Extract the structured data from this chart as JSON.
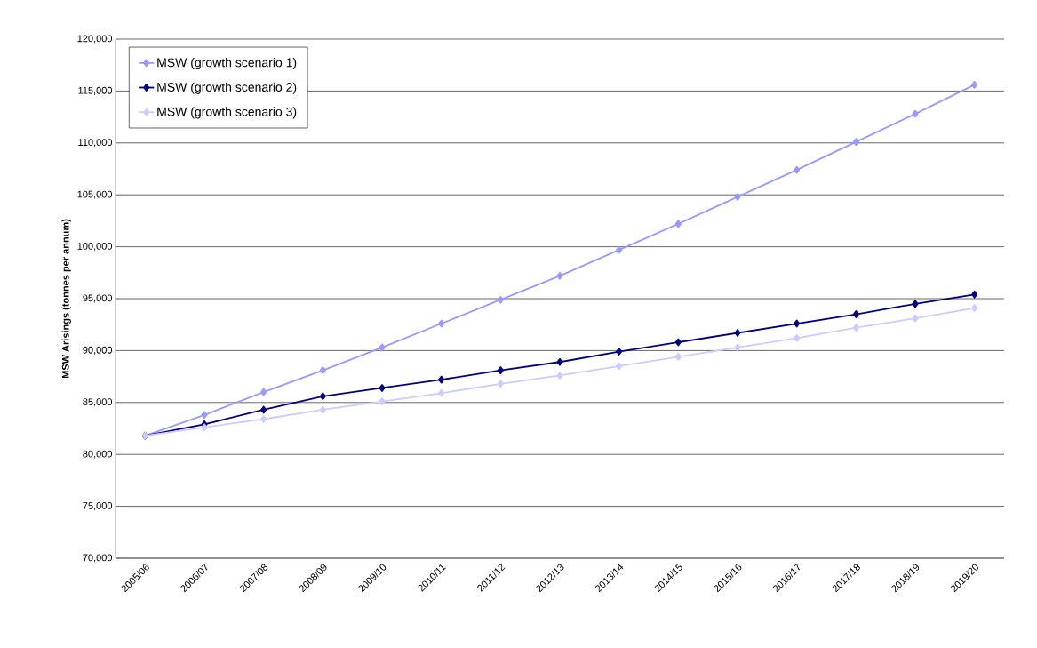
{
  "chart_data": {
    "type": "line",
    "ylabel": "MSW Arisings (tonnes per annum)",
    "categories": [
      "2005/06",
      "2006/07",
      "2007/08",
      "2008/09",
      "2009/10",
      "2010/11",
      "2011/12",
      "2012/13",
      "2013/14",
      "2014/15",
      "2015/16",
      "2016/17",
      "2017/18",
      "2018/19",
      "2019/20"
    ],
    "series": [
      {
        "name": "MSW (growth scenario 1)",
        "color": "#9999ff",
        "values": [
          81800,
          83800,
          86000,
          88100,
          90300,
          92600,
          94900,
          97200,
          99700,
          102200,
          104800,
          107400,
          110100,
          112800,
          115600
        ]
      },
      {
        "name": "MSW (growth scenario 2)",
        "color": "#000080",
        "values": [
          81800,
          82900,
          84300,
          85600,
          86400,
          87200,
          88100,
          88900,
          89900,
          90800,
          91700,
          92600,
          93500,
          94500,
          95400
        ]
      },
      {
        "name": "MSW (growth scenario 3)",
        "color": "#ccccff",
        "values": [
          81800,
          82600,
          83400,
          84300,
          85100,
          85900,
          86800,
          87600,
          88500,
          89400,
          90300,
          91200,
          92200,
          93100,
          94100
        ]
      }
    ],
    "ylim": [
      70000,
      120000
    ],
    "yticks": [
      {
        "value": 70000,
        "label": "70,000"
      },
      {
        "value": 75000,
        "label": "75,000"
      },
      {
        "value": 80000,
        "label": "80,000"
      },
      {
        "value": 85000,
        "label": "85,000"
      },
      {
        "value": 90000,
        "label": "90,000"
      },
      {
        "value": 95000,
        "label": "95,000"
      },
      {
        "value": 100000,
        "label": "100,000"
      },
      {
        "value": 105000,
        "label": "105,000"
      },
      {
        "value": 110000,
        "label": "110,000"
      },
      {
        "value": 115000,
        "label": "115,000"
      },
      {
        "value": 120000,
        "label": "120,000"
      }
    ],
    "grid": "y",
    "legend": "top left",
    "marker": "diamond",
    "line_style": "solid"
  }
}
